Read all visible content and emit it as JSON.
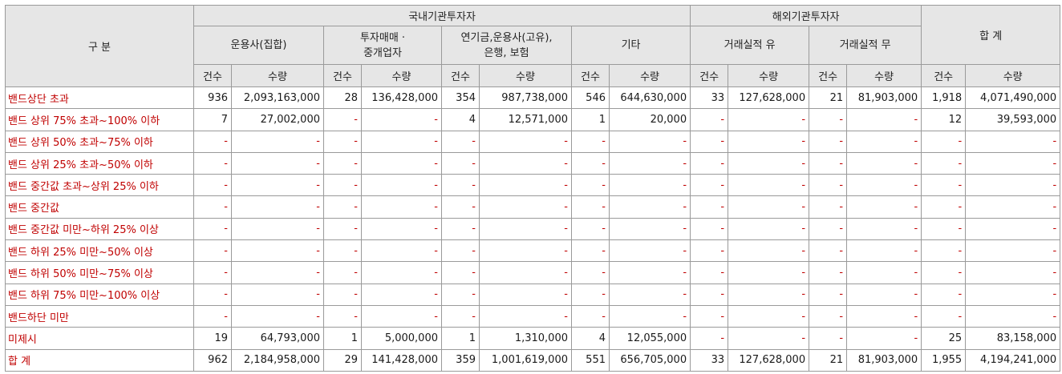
{
  "header": {
    "category": "구 분",
    "domestic": "국내기관투자자",
    "foreign": "해외기관투자자",
    "total": "합 계",
    "groups": [
      "운용사(집합)",
      "투자매매 ·\n중개업자",
      "연기금,운용사(고유),\n은행, 보험",
      "기타",
      "거래실적 유",
      "거래실적 무"
    ],
    "count_label": "건수",
    "qty_label": "수량"
  },
  "rows": [
    {
      "label": "밴드상단 초과",
      "cells": [
        "936",
        "2,093,163,000",
        "28",
        "136,428,000",
        "354",
        "987,738,000",
        "546",
        "644,630,000",
        "33",
        "127,628,000",
        "21",
        "81,903,000",
        "1,918",
        "4,071,490,000"
      ]
    },
    {
      "label": "밴드 상위 75% 초과~100% 이하",
      "cells": [
        "7",
        "27,002,000",
        "-",
        "-",
        "4",
        "12,571,000",
        "1",
        "20,000",
        "-",
        "-",
        "-",
        "-",
        "12",
        "39,593,000"
      ]
    },
    {
      "label": "밴드 상위 50% 초과~75% 이하",
      "cells": [
        "-",
        "-",
        "-",
        "-",
        "-",
        "-",
        "-",
        "-",
        "-",
        "-",
        "-",
        "-",
        "-",
        "-"
      ]
    },
    {
      "label": "밴드 상위 25% 초과~50% 이하",
      "cells": [
        "-",
        "-",
        "-",
        "-",
        "-",
        "-",
        "-",
        "-",
        "-",
        "-",
        "-",
        "-",
        "-",
        "-"
      ]
    },
    {
      "label": "밴드 중간값 초과~상위 25% 이하",
      "cells": [
        "-",
        "-",
        "-",
        "-",
        "-",
        "-",
        "-",
        "-",
        "-",
        "-",
        "-",
        "-",
        "-",
        "-"
      ]
    },
    {
      "label": "밴드 중간값",
      "cells": [
        "-",
        "-",
        "-",
        "-",
        "-",
        "-",
        "-",
        "-",
        "-",
        "-",
        "-",
        "-",
        "-",
        "-"
      ]
    },
    {
      "label": "밴드 중간값 미만~하위 25% 이상",
      "cells": [
        "-",
        "-",
        "-",
        "-",
        "-",
        "-",
        "-",
        "-",
        "-",
        "-",
        "-",
        "-",
        "-",
        "-"
      ]
    },
    {
      "label": "밴드 하위 25% 미만~50% 이상",
      "cells": [
        "-",
        "-",
        "-",
        "-",
        "-",
        "-",
        "-",
        "-",
        "-",
        "-",
        "-",
        "-",
        "-",
        "-"
      ]
    },
    {
      "label": "밴드 하위 50% 미만~75% 이상",
      "cells": [
        "-",
        "-",
        "-",
        "-",
        "-",
        "-",
        "-",
        "-",
        "-",
        "-",
        "-",
        "-",
        "-",
        "-"
      ]
    },
    {
      "label": "밴드 하위 75% 미만~100% 이상",
      "cells": [
        "-",
        "-",
        "-",
        "-",
        "-",
        "-",
        "-",
        "-",
        "-",
        "-",
        "-",
        "-",
        "-",
        "-"
      ]
    },
    {
      "label": "밴드하단 미만",
      "cells": [
        "-",
        "-",
        "-",
        "-",
        "-",
        "-",
        "-",
        "-",
        "-",
        "-",
        "-",
        "-",
        "-",
        "-"
      ]
    },
    {
      "label": "미제시",
      "cells": [
        "19",
        "64,793,000",
        "1",
        "5,000,000",
        "1",
        "1,310,000",
        "4",
        "12,055,000",
        "-",
        "-",
        "-",
        "-",
        "25",
        "83,158,000"
      ]
    },
    {
      "label": "합 계",
      "cells": [
        "962",
        "2,184,958,000",
        "29",
        "141,428,000",
        "359",
        "1,001,619,000",
        "551",
        "656,705,000",
        "33",
        "127,628,000",
        "21",
        "81,903,000",
        "1,955",
        "4,194,241,000"
      ]
    }
  ],
  "colors": {
    "header_bg": "#e6e6e6",
    "border": "#9a9a9a",
    "label_text": "#c00000"
  }
}
